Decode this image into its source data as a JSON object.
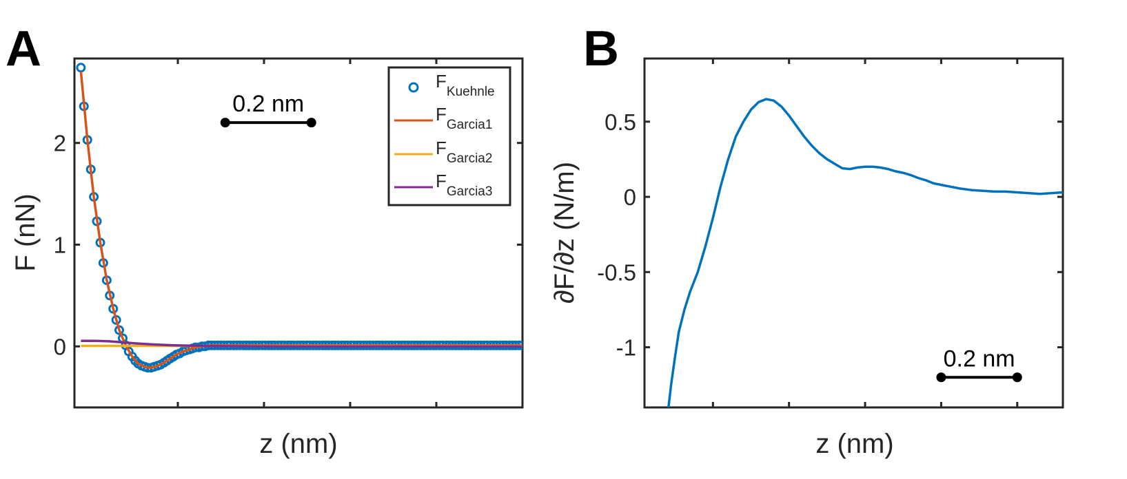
{
  "chart_data": [
    {
      "panel": "A",
      "type": "line",
      "xlabel": "z (nm)",
      "ylabel": "F (nN)",
      "xlim": [
        0,
        1.04
      ],
      "ylim": [
        -0.6,
        2.83
      ],
      "xticks": [
        0.24,
        0.44,
        0.64,
        0.84
      ],
      "xtick_labels_shown": false,
      "yticks": [
        0,
        1,
        2
      ],
      "ytick_labels": [
        "0",
        "1",
        "2"
      ],
      "grid": false,
      "legend_position": "top-right",
      "scale_bar": {
        "label": "0.2 nm",
        "length": 0.2,
        "x0": 0.35,
        "y": 2.2
      },
      "series": [
        {
          "name": "F_Kuehnle",
          "legend_main": "F",
          "legend_sub": "Kuehnle",
          "style": "markers",
          "color": "#0072BD",
          "x": [
            0.015,
            0.022,
            0.03,
            0.038,
            0.045,
            0.052,
            0.06,
            0.067,
            0.075,
            0.082,
            0.09,
            0.097,
            0.104,
            0.112,
            0.119,
            0.126,
            0.134,
            0.141,
            0.148,
            0.156,
            0.163,
            0.17,
            0.178,
            0.185,
            0.193,
            0.2,
            0.208,
            0.215,
            0.222,
            0.23,
            0.237,
            0.244,
            0.252,
            0.259,
            0.267,
            0.274,
            0.281,
            0.289,
            0.296,
            0.303,
            0.311,
            0.318,
            0.325,
            0.333,
            0.34,
            0.347,
            0.355,
            0.362,
            0.37,
            0.377,
            0.384,
            0.392,
            0.399,
            0.406,
            0.414,
            0.421,
            0.428,
            0.436,
            0.443,
            0.451,
            0.458,
            0.465,
            0.473,
            0.48,
            0.487,
            0.495,
            0.502,
            0.509,
            0.517,
            0.524,
            0.531,
            0.539,
            0.546,
            0.554,
            0.561,
            0.568,
            0.576,
            0.583,
            0.59,
            0.598,
            0.605,
            0.612,
            0.62,
            0.627,
            0.634,
            0.642,
            0.649,
            0.657,
            0.664,
            0.671,
            0.679,
            0.686,
            0.693,
            0.701,
            0.708,
            0.715,
            0.723,
            0.73,
            0.737,
            0.745,
            0.752,
            0.76,
            0.767,
            0.774,
            0.782,
            0.789,
            0.796,
            0.804,
            0.811,
            0.818,
            0.826,
            0.833,
            0.84,
            0.848,
            0.855,
            0.863,
            0.87,
            0.877,
            0.885,
            0.892,
            0.899,
            0.907,
            0.914,
            0.921,
            0.929,
            0.936,
            0.943,
            0.951,
            0.958,
            0.966,
            0.973,
            0.98,
            0.988,
            0.995,
            1.002,
            1.01,
            1.017,
            1.024,
            1.032,
            1.039
          ],
          "y": [
            2.74,
            2.36,
            2.03,
            1.74,
            1.47,
            1.23,
            1.02,
            0.82,
            0.65,
            0.5,
            0.37,
            0.26,
            0.16,
            0.08,
            0.01,
            -0.05,
            -0.1,
            -0.14,
            -0.17,
            -0.19,
            -0.2,
            -0.21,
            -0.21,
            -0.2,
            -0.19,
            -0.18,
            -0.16,
            -0.14,
            -0.12,
            -0.1,
            -0.08,
            -0.07,
            -0.05,
            -0.04,
            -0.03,
            -0.02,
            -0.01,
            -0.01,
            0.0,
            0.0,
            0.01,
            0.01,
            0.01,
            0.01,
            0.01,
            0.01,
            0.01,
            0.01,
            0.01,
            0.01,
            0.01,
            0.01,
            0.01,
            0.01,
            0.01,
            0.01,
            0.01,
            0.01,
            0.01,
            0.01,
            0.01,
            0.01,
            0.01,
            0.01,
            0.01,
            0.01,
            0.01,
            0.01,
            0.01,
            0.01,
            0.01,
            0.01,
            0.01,
            0.01,
            0.01,
            0.01,
            0.01,
            0.01,
            0.01,
            0.01,
            0.01,
            0.01,
            0.01,
            0.01,
            0.01,
            0.01,
            0.01,
            0.01,
            0.01,
            0.01,
            0.01,
            0.01,
            0.01,
            0.01,
            0.01,
            0.01,
            0.01,
            0.01,
            0.01,
            0.01,
            0.01,
            0.01,
            0.01,
            0.01,
            0.01,
            0.01,
            0.01,
            0.01,
            0.01,
            0.01,
            0.01,
            0.01,
            0.01,
            0.01,
            0.01,
            0.01,
            0.01,
            0.01,
            0.01,
            0.01,
            0.01,
            0.01,
            0.01,
            0.01,
            0.01,
            0.01,
            0.01,
            0.01,
            0.01,
            0.01,
            0.01,
            0.01,
            0.01,
            0.01,
            0.01,
            0.01,
            0.01,
            0.01,
            0.01,
            0.01
          ]
        },
        {
          "name": "F_Garcia1",
          "legend_main": "F",
          "legend_sub": "Garcia1",
          "style": "line",
          "color": "#D95319",
          "x": [
            0.015,
            0.03,
            0.045,
            0.06,
            0.075,
            0.09,
            0.104,
            0.119,
            0.134,
            0.148,
            0.163,
            0.178,
            0.193,
            0.208,
            0.222,
            0.237,
            0.252,
            0.267,
            0.281,
            0.296,
            0.311,
            0.34,
            0.37,
            0.43,
            0.52,
            0.64,
            0.8,
            1.039
          ],
          "y": [
            2.7,
            2.03,
            1.47,
            1.02,
            0.65,
            0.37,
            0.16,
            0.01,
            -0.1,
            -0.17,
            -0.2,
            -0.21,
            -0.19,
            -0.16,
            -0.12,
            -0.08,
            -0.05,
            -0.03,
            -0.01,
            0.0,
            0.01,
            0.01,
            0.01,
            0.01,
            0.01,
            0.01,
            0.01,
            0.01
          ]
        },
        {
          "name": "F_Garcia2",
          "legend_main": "F",
          "legend_sub": "Garcia2",
          "style": "line",
          "color": "#EDB120",
          "x": [
            0.015,
            0.1,
            0.3,
            0.6,
            1.039
          ],
          "y": [
            0.005,
            0.005,
            0.005,
            0.005,
            0.005
          ]
        },
        {
          "name": "F_Garcia3",
          "legend_main": "F",
          "legend_sub": "Garcia3",
          "style": "line",
          "color": "#7E2F8E",
          "x": [
            0.015,
            0.05,
            0.08,
            0.11,
            0.14,
            0.18,
            0.22,
            0.27,
            0.32,
            0.4,
            0.5,
            0.7,
            1.039
          ],
          "y": [
            0.055,
            0.055,
            0.05,
            0.04,
            0.03,
            0.02,
            0.012,
            0.007,
            0.004,
            0.002,
            0.001,
            0.0,
            0.0
          ]
        }
      ]
    },
    {
      "panel": "B",
      "type": "line",
      "xlabel": "z (nm)",
      "ylabel": "∂F/∂z (N/m)",
      "xlim": [
        0,
        1.1
      ],
      "ylim": [
        -1.4,
        0.92
      ],
      "xticks": [
        0.18,
        0.38,
        0.58,
        0.78,
        0.98
      ],
      "xtick_labels_shown": false,
      "yticks": [
        -1,
        -0.5,
        0,
        0.5
      ],
      "ytick_labels": [
        "-1",
        "-0.5",
        "0",
        "0.5"
      ],
      "grid": false,
      "scale_bar": {
        "label": "0.2 nm",
        "length": 0.2,
        "x0": 0.78,
        "y": -1.2
      },
      "series": [
        {
          "name": "",
          "style": "line",
          "color": "#0072BD",
          "x": [
            0.063,
            0.07,
            0.08,
            0.09,
            0.105,
            0.12,
            0.14,
            0.16,
            0.18,
            0.2,
            0.22,
            0.24,
            0.26,
            0.28,
            0.3,
            0.32,
            0.34,
            0.36,
            0.38,
            0.4,
            0.42,
            0.44,
            0.46,
            0.48,
            0.5,
            0.52,
            0.54,
            0.56,
            0.58,
            0.6,
            0.62,
            0.64,
            0.66,
            0.68,
            0.7,
            0.72,
            0.74,
            0.76,
            0.78,
            0.8,
            0.83,
            0.86,
            0.89,
            0.92,
            0.95,
            0.98,
            1.01,
            1.04,
            1.07,
            1.1
          ],
          "y": [
            -1.4,
            -1.25,
            -1.07,
            -0.9,
            -0.75,
            -0.63,
            -0.5,
            -0.33,
            -0.14,
            0.07,
            0.25,
            0.4,
            0.5,
            0.58,
            0.63,
            0.65,
            0.64,
            0.6,
            0.54,
            0.47,
            0.4,
            0.34,
            0.29,
            0.25,
            0.22,
            0.19,
            0.185,
            0.195,
            0.2,
            0.2,
            0.195,
            0.185,
            0.17,
            0.16,
            0.145,
            0.125,
            0.11,
            0.09,
            0.08,
            0.07,
            0.055,
            0.045,
            0.04,
            0.035,
            0.035,
            0.03,
            0.025,
            0.02,
            0.025,
            0.03
          ]
        }
      ]
    }
  ],
  "labels": {
    "panel_a": "A",
    "panel_b": "B"
  },
  "colors": {
    "axis": "#262626",
    "scalebar": "#000000",
    "background": "#ffffff"
  }
}
